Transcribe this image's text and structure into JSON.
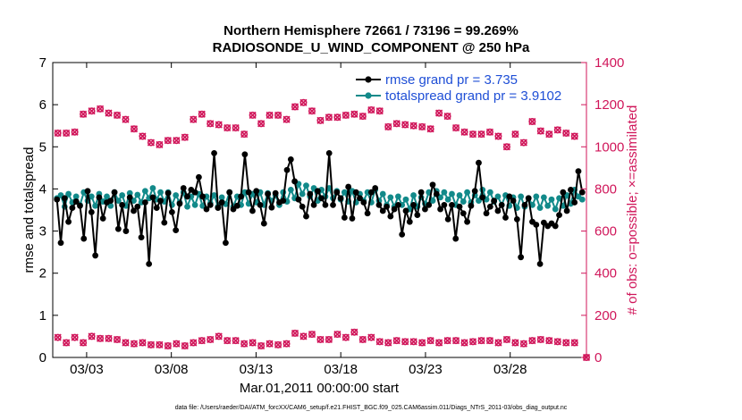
{
  "chart_data": {
    "type": "line",
    "title": [
      "Northern Hemisphere 72661 / 73196 = 99.269%",
      "RADIOSONDE_U_WIND_COMPONENT @ 250 hPa"
    ],
    "xlabel": "Mar.01,2011 00:00:00 start",
    "ylabel": "rmse and totalspread",
    "ylabel_right": "# of obs: o=possible; ×=assimilated",
    "footnote": "data file: /Users/raeder/DAI/ATM_forcXX/CAM6_setup/f.e21.FHIST_BGC.f09_025.CAM6assim.011/Diags_NTrS_2011-03/obs_diag_output.nc",
    "x_range_days": [
      1.0,
      32.5
    ],
    "ylim": [
      0,
      7
    ],
    "ylim_right": [
      0,
      1400
    ],
    "x_ticks": [
      {
        "day": 3,
        "label": "03/03"
      },
      {
        "day": 8,
        "label": "03/08"
      },
      {
        "day": 13,
        "label": "03/13"
      },
      {
        "day": 18,
        "label": "03/18"
      },
      {
        "day": 23,
        "label": "03/23"
      },
      {
        "day": 28,
        "label": "03/28"
      }
    ],
    "y_ticks": [
      "0",
      "1",
      "2",
      "3",
      "4",
      "5",
      "6",
      "7"
    ],
    "y_ticks_right": [
      "0",
      "200",
      "400",
      "600",
      "800",
      "1000",
      "1200",
      "1400"
    ],
    "legend_position": "top-right",
    "colors": {
      "rmse": "#000000",
      "spread": "#128a8a",
      "obs": "#d0165a",
      "legend_text": "#1f4fd6"
    },
    "series": [
      {
        "name": "rmse grand pr = 3.735",
        "axis": "left",
        "values": [
          3.75,
          2.72,
          3.78,
          3.22,
          3.55,
          3.7,
          3.6,
          2.82,
          3.95,
          3.45,
          2.42,
          3.8,
          3.3,
          3.68,
          3.72,
          3.92,
          3.05,
          3.62,
          3.0,
          3.8,
          3.48,
          3.58,
          2.85,
          3.68,
          2.22,
          3.8,
          3.55,
          3.72,
          3.2,
          3.9,
          3.45,
          3.02,
          3.65,
          4.02,
          3.82,
          3.98,
          3.92,
          4.28,
          3.82,
          3.52,
          3.62,
          4.85,
          3.55,
          3.68,
          2.72,
          3.92,
          3.52,
          3.6,
          3.82,
          4.82,
          3.92,
          3.48,
          3.95,
          3.62,
          3.18,
          3.88,
          3.56,
          3.9,
          3.68,
          3.72,
          4.45,
          4.7,
          4.18,
          3.75,
          3.58,
          3.35,
          3.88,
          3.62,
          3.95,
          3.78,
          3.62,
          4.85,
          3.62,
          3.92,
          3.78,
          3.32,
          4.05,
          3.3,
          3.92,
          3.78,
          3.68,
          3.42,
          3.92,
          4.02,
          3.62,
          3.48,
          3.58,
          3.35,
          3.52,
          3.62,
          2.92,
          3.48,
          3.22,
          3.62,
          3.38,
          3.92,
          3.52,
          3.62,
          4.1,
          3.88,
          3.52,
          3.62,
          3.28,
          3.62,
          2.82,
          3.58,
          3.42,
          3.22,
          3.6,
          3.95,
          4.62,
          3.8,
          3.42,
          3.58,
          3.72,
          3.48,
          3.62,
          3.32,
          3.82,
          3.72,
          3.28,
          2.38,
          3.62,
          3.78,
          3.22,
          3.15,
          2.22,
          3.2,
          3.12,
          3.18,
          3.12,
          3.38,
          3.92,
          3.48,
          3.98,
          3.68,
          4.42,
          3.92
        ]
      },
      {
        "name": "totalspread grand pr = 3.9102",
        "axis": "left",
        "values": [
          3.78,
          3.85,
          3.58,
          3.88,
          3.68,
          3.82,
          3.62,
          3.92,
          3.72,
          3.82,
          3.6,
          3.88,
          3.7,
          3.82,
          3.6,
          3.92,
          3.72,
          3.85,
          3.6,
          3.9,
          3.72,
          3.86,
          3.68,
          3.95,
          3.78,
          4.02,
          3.75,
          3.92,
          3.7,
          3.92,
          3.62,
          3.85,
          3.68,
          3.92,
          3.58,
          3.82,
          3.62,
          3.88,
          3.6,
          3.82,
          3.66,
          3.85,
          3.58,
          3.8,
          3.64,
          3.92,
          3.58,
          3.82,
          3.62,
          3.92,
          3.65,
          3.88,
          3.68,
          3.92,
          3.62,
          3.9,
          3.72,
          3.85,
          3.62,
          3.92,
          3.7,
          3.98,
          3.78,
          4.12,
          3.88,
          4.08,
          3.82,
          4.02,
          3.72,
          3.98,
          3.82,
          4.02,
          3.78,
          3.95,
          3.75,
          3.92,
          3.7,
          3.95,
          3.68,
          3.88,
          3.72,
          3.92,
          3.68,
          3.98,
          3.72,
          3.88,
          3.62,
          3.8,
          3.58,
          3.82,
          3.62,
          3.75,
          3.52,
          3.85,
          3.58,
          3.8,
          3.65,
          3.92,
          3.72,
          3.95,
          3.8,
          3.92,
          3.75,
          3.88,
          3.62,
          3.85,
          3.7,
          3.92,
          3.68,
          3.85,
          3.72,
          3.98,
          3.75,
          3.92,
          3.7,
          3.82,
          3.62,
          3.85,
          3.6,
          3.8,
          3.55,
          3.82,
          3.58,
          3.78,
          3.62,
          3.82,
          3.55,
          3.8,
          3.6,
          3.75,
          3.52,
          3.78,
          3.6,
          3.85,
          3.65,
          3.98,
          3.82,
          3.75
        ]
      },
      {
        "name": "obs possible",
        "axis": "right",
        "x_days": [
          1.3,
          1.8,
          2.3,
          2.8,
          3.3,
          3.8,
          4.3,
          4.8,
          5.3,
          5.8,
          6.3,
          6.8,
          7.3,
          7.8,
          8.3,
          8.8,
          9.3,
          9.8,
          10.3,
          10.8,
          11.3,
          11.8,
          12.3,
          12.8,
          13.3,
          13.8,
          14.3,
          14.8,
          15.3,
          15.8,
          16.3,
          16.8,
          17.3,
          17.8,
          18.3,
          18.8,
          19.3,
          19.8,
          20.3,
          20.8,
          21.3,
          21.8,
          22.3,
          22.8,
          23.3,
          23.8,
          24.3,
          24.8,
          25.3,
          25.8,
          26.3,
          26.8,
          27.3,
          27.8,
          28.3,
          28.8,
          29.3,
          29.8,
          30.3,
          30.8,
          31.3,
          31.8
        ],
        "values": [
          1065,
          1065,
          1070,
          1155,
          1170,
          1180,
          1160,
          1150,
          1130,
          1085,
          1050,
          1020,
          1010,
          1030,
          1030,
          1045,
          1130,
          1155,
          1110,
          1105,
          1090,
          1090,
          1060,
          1150,
          1110,
          1150,
          1150,
          1130,
          1190,
          1210,
          1170,
          1125,
          1140,
          1140,
          1150,
          1155,
          1145,
          1175,
          1170,
          1095,
          1110,
          1105,
          1100,
          1095,
          1085,
          1160,
          1145,
          1090,
          1070,
          1060,
          1060,
          1070,
          1050,
          1000,
          1060,
          1020,
          1120,
          1075,
          1060,
          1080,
          1065,
          1050
        ],
        "assimilated_at_day_32.5": 0
      },
      {
        "name": "obs assimilated",
        "axis": "right",
        "x_days": [
          1.3,
          1.8,
          2.3,
          2.8,
          3.3,
          3.8,
          4.3,
          4.8,
          5.3,
          5.8,
          6.3,
          6.8,
          7.3,
          7.8,
          8.3,
          8.8,
          9.3,
          9.8,
          10.3,
          10.8,
          11.3,
          11.8,
          12.3,
          12.8,
          13.3,
          13.8,
          14.3,
          14.8,
          15.3,
          15.8,
          16.3,
          16.8,
          17.3,
          17.8,
          18.3,
          18.8,
          19.3,
          19.8,
          20.3,
          20.8,
          21.3,
          21.8,
          22.3,
          22.8,
          23.3,
          23.8,
          24.3,
          24.8,
          25.3,
          25.8,
          26.3,
          26.8,
          27.3,
          27.8,
          28.3,
          28.8,
          29.3,
          29.8,
          30.3,
          30.8,
          31.3,
          31.8,
          32.5
        ],
        "values": [
          95,
          70,
          95,
          70,
          100,
          90,
          90,
          85,
          70,
          65,
          70,
          60,
          60,
          55,
          65,
          55,
          70,
          80,
          85,
          100,
          80,
          80,
          65,
          70,
          55,
          65,
          60,
          65,
          115,
          100,
          110,
          85,
          85,
          110,
          95,
          120,
          85,
          95,
          75,
          70,
          80,
          75,
          75,
          70,
          80,
          70,
          80,
          80,
          70,
          75,
          80,
          80,
          70,
          85,
          70,
          65,
          80,
          85,
          80,
          75,
          70,
          70,
          0
        ]
      }
    ]
  }
}
